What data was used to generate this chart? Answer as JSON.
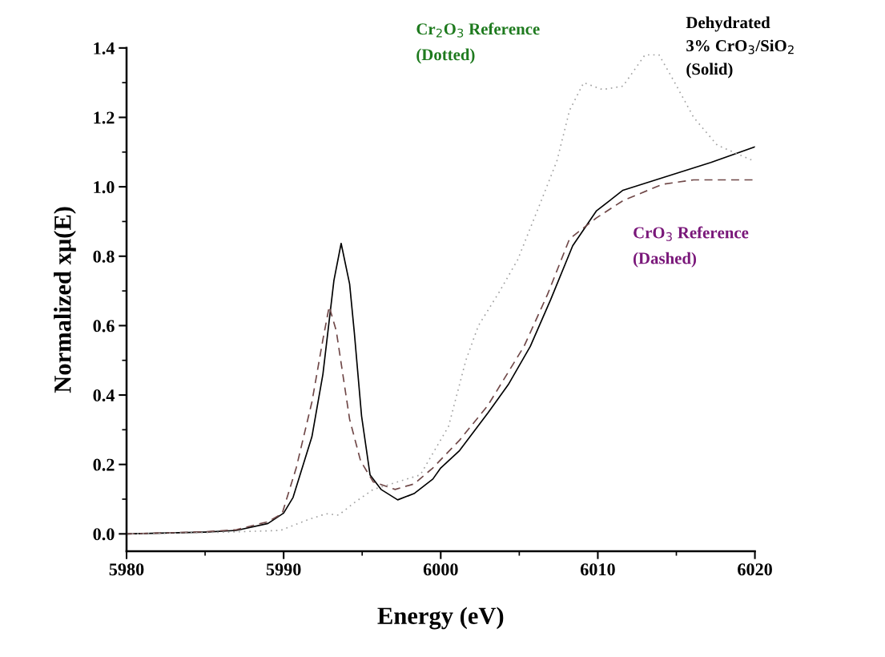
{
  "chart_data": {
    "type": "line",
    "xlabel": "Energy (eV)",
    "ylabel": "Normalized xμ(E)",
    "xlim": [
      5980,
      6020
    ],
    "xticks": [
      5980,
      5990,
      6000,
      6010,
      6020
    ],
    "ylim": [
      -0.05,
      1.4
    ],
    "yticks": [
      {
        "value": 0,
        "label": "0.0"
      },
      0.2,
      0.4,
      0.6,
      0.8,
      {
        "value": 1,
        "label": "1.0"
      },
      1.2,
      1.4
    ],
    "grid": false,
    "legend": false,
    "marker": "none",
    "annotations": [
      "Cr$_{2}$O$_{3}$ Reference\n(Dotted)",
      "Dehydrated\n3% CrO$_{3}$/SiO$_{2}$\n(Solid)",
      "CrO$_{3}$ Reference\n(Dashed)"
    ],
    "series": [
      {
        "color": "#000000",
        "line_style": "solid",
        "x": [
          5980,
          5985,
          5987,
          5989,
          5990,
          5990.6,
          5991.8,
          5992.5,
          5993.2,
          5993.66,
          5994.2,
          5994.5,
          5994.96,
          5995.5,
          5996.2,
          5997.26,
          5998.3,
          5999.5,
          6000,
          6001.2,
          6003.0,
          6004.3,
          6005.7,
          6007.0,
          6008.4,
          6009.9,
          6011.6,
          6015.1,
          6017.2,
          6020
        ],
        "values": [
          0.0,
          0.005,
          0.01,
          0.03,
          0.06,
          0.105,
          0.28,
          0.46,
          0.73,
          0.837,
          0.72,
          0.58,
          0.34,
          0.17,
          0.128,
          0.098,
          0.116,
          0.158,
          0.19,
          0.24,
          0.348,
          0.43,
          0.54,
          0.675,
          0.83,
          0.93,
          0.99,
          1.04,
          1.07,
          1.115
        ]
      },
      {
        "color": "#704848",
        "line_style": "dashed",
        "x": [
          5980,
          5985,
          5987,
          5989,
          5989.9,
          5990.8,
          5991.8,
          5992.5,
          5992.9,
          5993.35,
          5993.7,
          5994.2,
          5994.9,
          5995.7,
          5997.1,
          5998.3,
          5999.5,
          6001.2,
          6003.0,
          6005.3,
          6006.8,
          6008.2,
          6009.9,
          6011.6,
          6014.1,
          6016.1,
          6020
        ],
        "values": [
          0.0,
          0.006,
          0.012,
          0.035,
          0.058,
          0.19,
          0.38,
          0.56,
          0.655,
          0.585,
          0.48,
          0.33,
          0.21,
          0.15,
          0.128,
          0.144,
          0.19,
          0.27,
          0.37,
          0.54,
          0.69,
          0.85,
          0.91,
          0.96,
          1.007,
          1.02,
          1.02
        ]
      },
      {
        "color": "#a0a0a0",
        "line_style": "dotted",
        "x": [
          5980,
          5986.4,
          5989.8,
          5991.5,
          5992.7,
          5993.5,
          5994.5,
          5995.7,
          5998.7,
          6000.5,
          6001.6,
          6002.4,
          6003.7,
          6004.9,
          6006.4,
          6007.4,
          6008.2,
          6009.1,
          6010.3,
          6011.6,
          6013.0,
          6013.9,
          6014.9,
          6016.1,
          6017.6,
          6019.9
        ],
        "values": [
          0.0,
          0.005,
          0.01,
          0.04,
          0.058,
          0.054,
          0.09,
          0.128,
          0.17,
          0.31,
          0.5,
          0.6,
          0.695,
          0.79,
          0.96,
          1.075,
          1.22,
          1.3,
          1.28,
          1.29,
          1.38,
          1.38,
          1.3,
          1.2,
          1.12,
          1.075
        ]
      }
    ]
  }
}
